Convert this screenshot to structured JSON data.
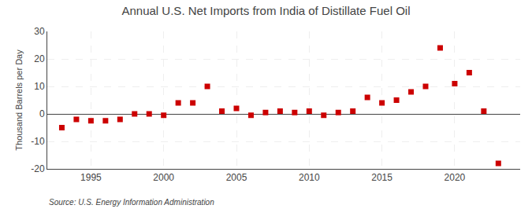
{
  "chart_data": {
    "type": "scatter",
    "title": "Annual U.S. Net Imports from India of Distillate Fuel Oil",
    "ylabel": "Thousand Barrels per Day",
    "annotations": [
      "Source: U.S. Energy Information Administration"
    ],
    "x": [
      1993,
      1994,
      1995,
      1996,
      1997,
      1998,
      1999,
      2000,
      2001,
      2002,
      2003,
      2004,
      2005,
      2006,
      2007,
      2008,
      2009,
      2010,
      2011,
      2012,
      2013,
      2014,
      2015,
      2016,
      2017,
      2018,
      2019,
      2020,
      2021,
      2022,
      2023
    ],
    "values": [
      -5.0,
      -2.0,
      -2.5,
      -2.5,
      -2.0,
      0.0,
      0.0,
      -0.5,
      4.0,
      4.0,
      10.0,
      1.0,
      2.0,
      -0.5,
      0.5,
      1.0,
      0.5,
      1.0,
      -0.5,
      0.5,
      1.0,
      6.0,
      4.0,
      5.0,
      8.0,
      10.0,
      24.0,
      11.0,
      15.0,
      1.0,
      -18.0
    ],
    "color": "#cc0000",
    "marker": "square",
    "xlim": [
      1992.0,
      2024.5
    ],
    "xticks": [
      1995,
      2000,
      2005,
      2010,
      2015,
      2020
    ],
    "ylim": [
      -20,
      30
    ],
    "yticks": [
      -20,
      -10,
      0,
      10,
      20,
      30
    ],
    "grid": true
  }
}
